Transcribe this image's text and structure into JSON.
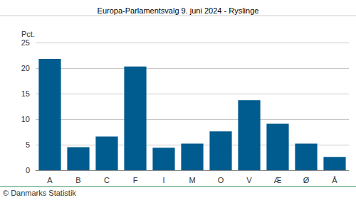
{
  "chart_data": {
    "type": "bar",
    "title": "Europa-Parlamentsvalg 9. juni 2024 - Ryslinge",
    "ylabel": "Pct.",
    "note": "© Danmarks Statistik",
    "categories": [
      "A",
      "B",
      "C",
      "F",
      "I",
      "M",
      "O",
      "V",
      "Æ",
      "Ø",
      "Å"
    ],
    "values": [
      21.8,
      4.5,
      6.6,
      20.3,
      4.4,
      5.2,
      7.6,
      13.7,
      9.1,
      5.2,
      2.6
    ],
    "color": "#005b8e",
    "ylim": [
      0,
      25
    ],
    "yticks": [
      0,
      5,
      10,
      15,
      20,
      25
    ],
    "grid": true
  }
}
